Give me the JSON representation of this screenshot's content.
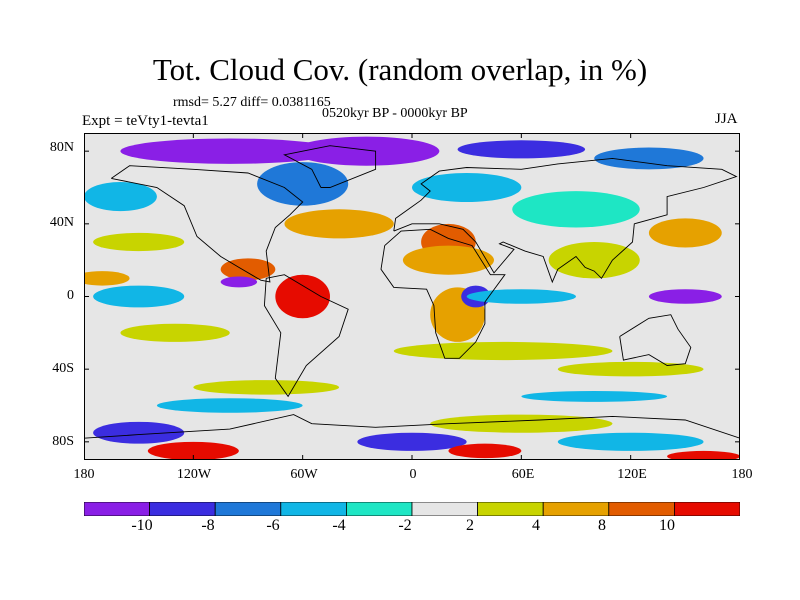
{
  "chart_data": {
    "type": "heatmap",
    "title": "Tot. Cloud Cov. (random overlap, in %)",
    "stats": "rmsd= 5.27  diff= 0.0381165",
    "period": "0520kyr BP - 0000kyr BP",
    "experiment": "Expt = teVty1-tevta1",
    "season": "JJA",
    "x_ticks": [
      "180",
      "120W",
      "60W",
      "0",
      "60E",
      "120E",
      "180"
    ],
    "x_tick_lons": [
      -180,
      -120,
      -60,
      0,
      60,
      120,
      180
    ],
    "y_ticks": [
      "80N",
      "40N",
      "0",
      "40S",
      "80S"
    ],
    "y_tick_lats": [
      80,
      40,
      0,
      -40,
      -80
    ],
    "xlim": [
      -180,
      180
    ],
    "ylim": [
      -90,
      90
    ],
    "colorbar": {
      "levels": [
        -10,
        -8,
        -6,
        -4,
        -2,
        2,
        4,
        8,
        10
      ],
      "level_labels": [
        "-10",
        "-8",
        "-6",
        "-4",
        "-2",
        "2",
        "4",
        "8",
        "10"
      ],
      "colors": [
        "#8a1fe6",
        "#3b2de0",
        "#1f78d8",
        "#11b6e6",
        "#1ee6c4",
        "#e6e6e6",
        "#c8d400",
        "#e6a100",
        "#e25c00",
        "#e60b00"
      ]
    },
    "field_blobs": [
      {
        "lon": -100,
        "lat": 80,
        "rx": 60,
        "ry": 7,
        "level": 0
      },
      {
        "lon": -25,
        "lat": 80,
        "rx": 40,
        "ry": 8,
        "level": 0
      },
      {
        "lon": 60,
        "lat": 81,
        "rx": 35,
        "ry": 5,
        "level": 1
      },
      {
        "lon": 130,
        "lat": 76,
        "rx": 30,
        "ry": 6,
        "level": 2
      },
      {
        "lon": -60,
        "lat": 62,
        "rx": 25,
        "ry": 12,
        "level": 2
      },
      {
        "lon": 30,
        "lat": 60,
        "rx": 30,
        "ry": 8,
        "level": 3
      },
      {
        "lon": -160,
        "lat": 55,
        "rx": 20,
        "ry": 8,
        "level": 3
      },
      {
        "lon": 90,
        "lat": 48,
        "rx": 35,
        "ry": 10,
        "level": 4
      },
      {
        "lon": -40,
        "lat": 40,
        "rx": 30,
        "ry": 8,
        "level": 7
      },
      {
        "lon": 20,
        "lat": 30,
        "rx": 15,
        "ry": 10,
        "level": 8
      },
      {
        "lon": 150,
        "lat": 35,
        "rx": 20,
        "ry": 8,
        "level": 7
      },
      {
        "lon": -150,
        "lat": 30,
        "rx": 25,
        "ry": 5,
        "level": 6
      },
      {
        "lon": -90,
        "lat": 15,
        "rx": 15,
        "ry": 6,
        "level": 8
      },
      {
        "lon": -95,
        "lat": 8,
        "rx": 10,
        "ry": 3,
        "level": 0
      },
      {
        "lon": -60,
        "lat": 0,
        "rx": 15,
        "ry": 12,
        "level": 9
      },
      {
        "lon": 20,
        "lat": 20,
        "rx": 25,
        "ry": 8,
        "level": 7
      },
      {
        "lon": 25,
        "lat": -10,
        "rx": 15,
        "ry": 15,
        "level": 7
      },
      {
        "lon": 35,
        "lat": 0,
        "rx": 8,
        "ry": 6,
        "level": 1
      },
      {
        "lon": 100,
        "lat": 20,
        "rx": 25,
        "ry": 10,
        "level": 6
      },
      {
        "lon": 150,
        "lat": 0,
        "rx": 20,
        "ry": 4,
        "level": 0
      },
      {
        "lon": -170,
        "lat": 10,
        "rx": 15,
        "ry": 4,
        "level": 7
      },
      {
        "lon": -150,
        "lat": 0,
        "rx": 25,
        "ry": 6,
        "level": 3
      },
      {
        "lon": 60,
        "lat": 0,
        "rx": 30,
        "ry": 4,
        "level": 3
      },
      {
        "lon": -130,
        "lat": -20,
        "rx": 30,
        "ry": 5,
        "level": 6
      },
      {
        "lon": 50,
        "lat": -30,
        "rx": 60,
        "ry": 5,
        "level": 6
      },
      {
        "lon": 120,
        "lat": -40,
        "rx": 40,
        "ry": 4,
        "level": 6
      },
      {
        "lon": -80,
        "lat": -50,
        "rx": 40,
        "ry": 4,
        "level": 6
      },
      {
        "lon": -100,
        "lat": -60,
        "rx": 40,
        "ry": 4,
        "level": 3
      },
      {
        "lon": 100,
        "lat": -55,
        "rx": 40,
        "ry": 3,
        "level": 3
      },
      {
        "lon": 60,
        "lat": -70,
        "rx": 50,
        "ry": 5,
        "level": 6
      },
      {
        "lon": -150,
        "lat": -75,
        "rx": 25,
        "ry": 6,
        "level": 1
      },
      {
        "lon": -120,
        "lat": -85,
        "rx": 25,
        "ry": 5,
        "level": 9
      },
      {
        "lon": 0,
        "lat": -80,
        "rx": 30,
        "ry": 5,
        "level": 1
      },
      {
        "lon": 40,
        "lat": -85,
        "rx": 20,
        "ry": 4,
        "level": 9
      },
      {
        "lon": 120,
        "lat": -80,
        "rx": 40,
        "ry": 5,
        "level": 3
      },
      {
        "lon": 160,
        "lat": -88,
        "rx": 20,
        "ry": 3,
        "level": 9
      }
    ]
  }
}
